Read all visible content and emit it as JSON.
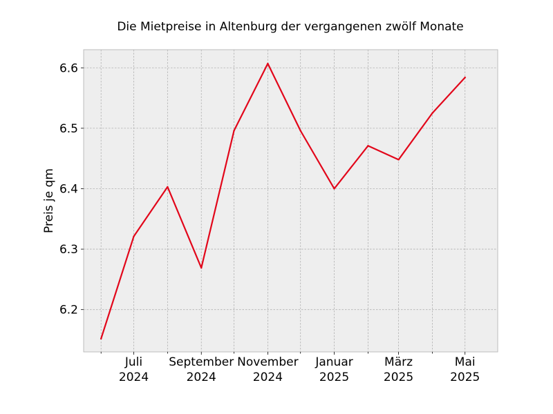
{
  "chart_data": {
    "type": "line",
    "title": "Die Mietpreise in Altenburg der vergangenen zwölf Monate",
    "xlabel": "",
    "ylabel": "Preis je qm",
    "x": [
      "2024-06",
      "2024-07",
      "2024-08",
      "2024-09",
      "2024-10",
      "2024-11",
      "2024-12",
      "2025-01",
      "2025-02",
      "2025-03",
      "2025-04",
      "2025-05"
    ],
    "x_ticks": [
      {
        "x": "2024-07",
        "line1": "Juli",
        "line2": "2024"
      },
      {
        "x": "2024-09",
        "line1": "September",
        "line2": "2024"
      },
      {
        "x": "2024-11",
        "line1": "November",
        "line2": "2024"
      },
      {
        "x": "2025-01",
        "line1": "Januar",
        "line2": "2025"
      },
      {
        "x": "2025-03",
        "line1": "März",
        "line2": "2025"
      },
      {
        "x": "2025-05",
        "line1": "Mai",
        "line2": "2025"
      }
    ],
    "minor_x_ticks": [
      "2024-06",
      "2024-08",
      "2024-10",
      "2024-12",
      "2025-02",
      "2025-04"
    ],
    "xlim": [
      "2024-05-16",
      "2025-05-31"
    ],
    "y_ticks": [
      "6.2",
      "6.3",
      "6.4",
      "6.5",
      "6.6"
    ],
    "ylim": [
      6.13,
      6.63
    ],
    "series": [
      {
        "values": [
          6.152,
          6.321,
          6.403,
          6.269,
          6.496,
          6.607,
          6.496,
          6.4,
          6.471,
          6.448,
          6.525,
          6.584
        ],
        "color": "#e2061a"
      }
    ],
    "grid": true,
    "legend": "none",
    "colors": {
      "plot_background": "#eeeeee",
      "grid": "#b0b0b0",
      "axes_edge": "#bcbcbc",
      "line": "#e2061a"
    }
  }
}
